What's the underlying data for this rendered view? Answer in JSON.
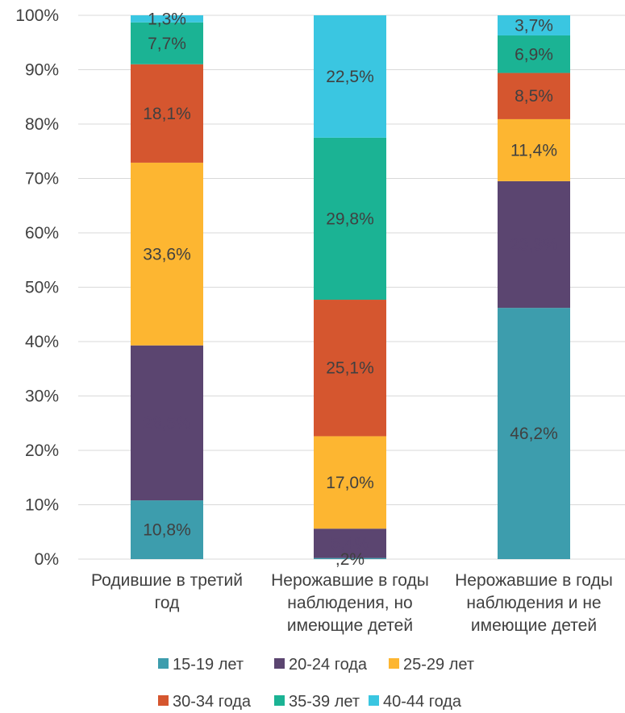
{
  "chart_data": {
    "type": "bar",
    "stacked": true,
    "percent_stacked": true,
    "categories": [
      [
        "Родившие в третий",
        "год"
      ],
      [
        "Нерожавшие в годы",
        "наблюдения, но",
        "имеющие детей"
      ],
      [
        "Нерожавшие в годы",
        "наблюдения и не",
        "имеющие детей"
      ]
    ],
    "series": [
      {
        "name": "15-19 лет",
        "color": "#3D9DAD",
        "values": [
          10.8,
          0.2,
          46.2
        ],
        "labels": [
          "10,8%",
          ",2%",
          "46,2%"
        ],
        "label_color": "#404040"
      },
      {
        "name": "20-24 года",
        "color": "#5B4570",
        "values": [
          28.5,
          5.4,
          23.3
        ],
        "labels": [
          "28,5%",
          "5,4%",
          "23,3%"
        ],
        "label_color": "#5B4570"
      },
      {
        "name": "25-29 лет",
        "color": "#FDB631",
        "values": [
          33.6,
          17.0,
          11.4
        ],
        "labels": [
          "33,6%",
          "17,0%",
          "11,4%"
        ],
        "label_color": "#404040"
      },
      {
        "name": "30-34 года",
        "color": "#D5562F",
        "values": [
          18.1,
          25.1,
          8.5
        ],
        "labels": [
          "18,1%",
          "25,1%",
          "8,5%"
        ],
        "label_color": "#404040"
      },
      {
        "name": "35-39 лет",
        "color": "#1BB394",
        "values": [
          7.7,
          29.8,
          6.9
        ],
        "labels": [
          "7,7%",
          "29,8%",
          "6,9%"
        ],
        "label_color": "#404040"
      },
      {
        "name": "40-44 года",
        "color": "#3AC6E1",
        "values": [
          1.3,
          22.5,
          3.7
        ],
        "labels": [
          "1,3%",
          "22,5%",
          "3,7%"
        ],
        "label_color": "#404040"
      }
    ],
    "ylim": [
      0,
      100
    ],
    "yticks": [
      "0%",
      "10%",
      "20%",
      "30%",
      "40%",
      "50%",
      "60%",
      "70%",
      "80%",
      "90%",
      "100%"
    ],
    "grid": true,
    "legend_position": "bottom"
  }
}
